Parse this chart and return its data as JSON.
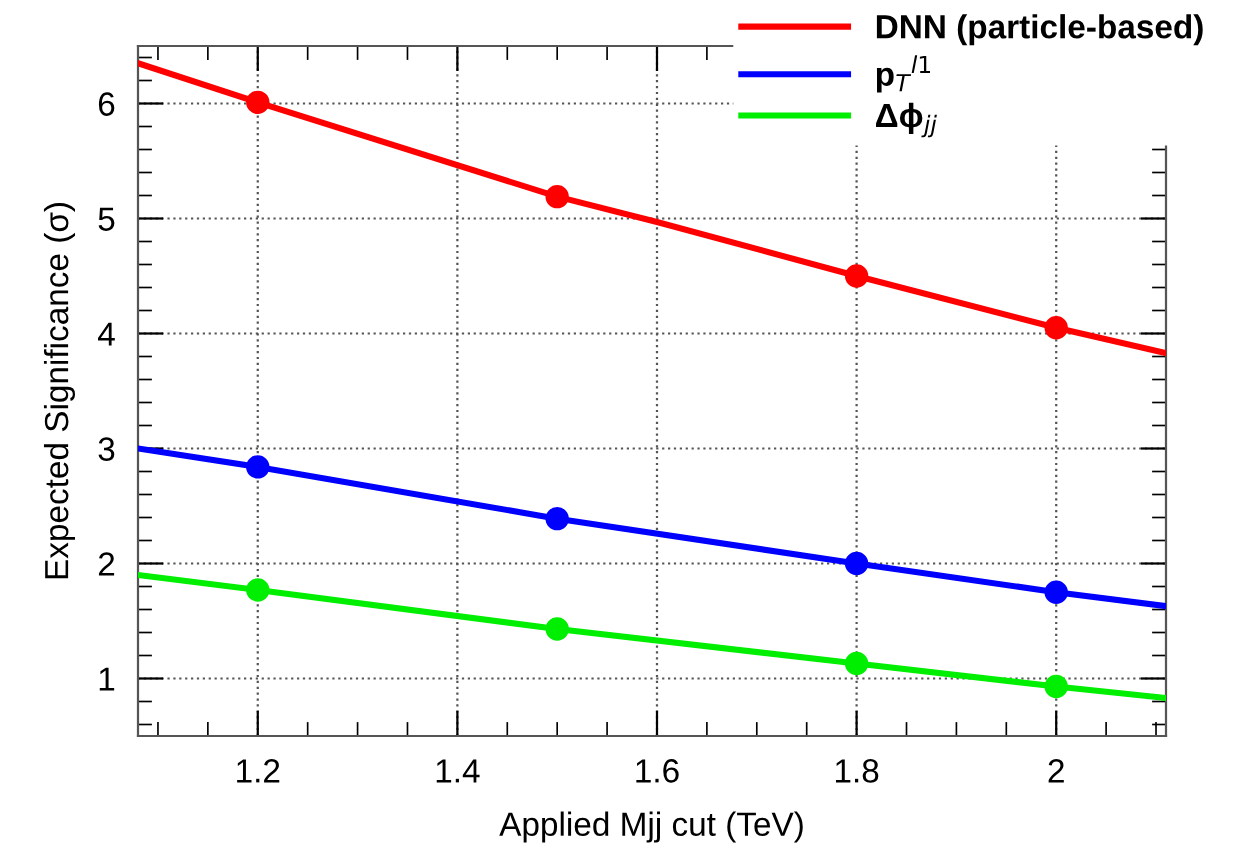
{
  "chart_data": {
    "type": "line",
    "xlabel": "Applied Mjj cut (TeV)",
    "ylabel": "Expected Significance (σ)",
    "xlim": [
      1.08,
      2.11
    ],
    "ylim": [
      0.5,
      6.5
    ],
    "xticks": [
      1.2,
      1.4,
      1.6,
      1.8,
      2
    ],
    "yticks": [
      1,
      2,
      3,
      4,
      5,
      6
    ],
    "grid": true,
    "legend": "top right",
    "series": [
      {
        "name": "DNN (particle-based)",
        "color": "#ff0000",
        "marker": "none",
        "x": [
          1.08,
          1.2,
          1.5,
          1.6,
          1.8,
          2.0,
          2.11
        ],
        "values": [
          6.35,
          6.01,
          5.19,
          4.97,
          4.5,
          4.05,
          3.83
        ]
      },
      {
        "name": "p$_{T}$$^{l1}$",
        "color": "#0000ff",
        "marker": "none",
        "x": [
          1.08,
          1.2,
          1.5,
          1.8,
          2.0,
          2.11
        ],
        "values": [
          3.0,
          2.84,
          2.39,
          2.0,
          1.75,
          1.63
        ]
      },
      {
        "name": "Δϕ$_{jj}$",
        "color": "#00ee00",
        "marker": "none",
        "x": [
          1.08,
          1.2,
          1.5,
          1.8,
          2.0,
          2.11
        ],
        "values": [
          1.9,
          1.77,
          1.43,
          1.13,
          0.93,
          0.83
        ]
      },
      {
        "type": "scatter",
        "color": "#ff0000",
        "marker": "circle",
        "x": [
          1.2,
          1.5,
          1.8,
          2.0
        ],
        "values": [
          6.01,
          5.19,
          4.5,
          4.05
        ]
      },
      {
        "type": "scatter",
        "color": "#0000ff",
        "marker": "circle",
        "x": [
          1.2,
          1.5,
          1.8,
          2.0
        ],
        "values": [
          2.84,
          2.39,
          2.0,
          1.75
        ]
      },
      {
        "type": "scatter",
        "color": "#00ee00",
        "marker": "circle",
        "x": [
          1.2,
          1.5,
          1.8,
          2.0
        ],
        "values": [
          1.77,
          1.43,
          1.13,
          0.93
        ]
      }
    ]
  }
}
